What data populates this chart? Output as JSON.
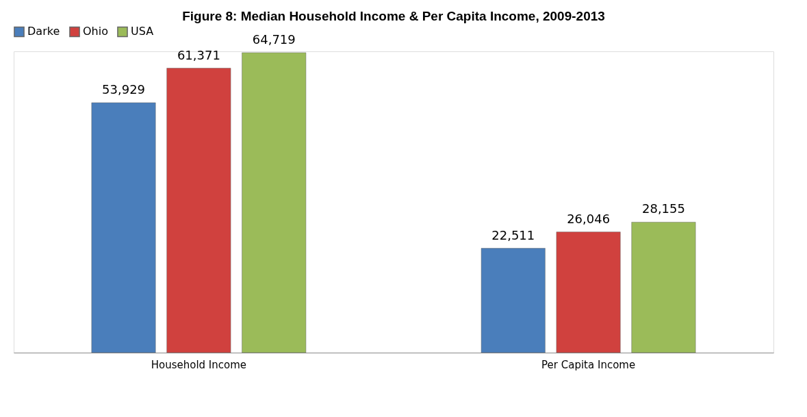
{
  "chart_data": {
    "type": "bar",
    "title": "Figure 8: Median Household Income & Per Capita Income, 2009-2013",
    "categories": [
      "Household Income",
      "Per Capita Income"
    ],
    "series": [
      {
        "name": "Darke",
        "color": "#4a7ebb",
        "values": [
          53929,
          22511
        ],
        "value_labels": [
          "53,929",
          "22,511"
        ]
      },
      {
        "name": "Ohio",
        "color": "#d0413e",
        "values": [
          61371,
          26046
        ],
        "value_labels": [
          "61,371",
          "26,046"
        ]
      },
      {
        "name": "USA",
        "color": "#9bbb59",
        "values": [
          64719,
          28155
        ],
        "value_labels": [
          "64,719",
          "28,155"
        ]
      }
    ],
    "legend": "top",
    "grid": false,
    "tick_labels": "x"
  }
}
